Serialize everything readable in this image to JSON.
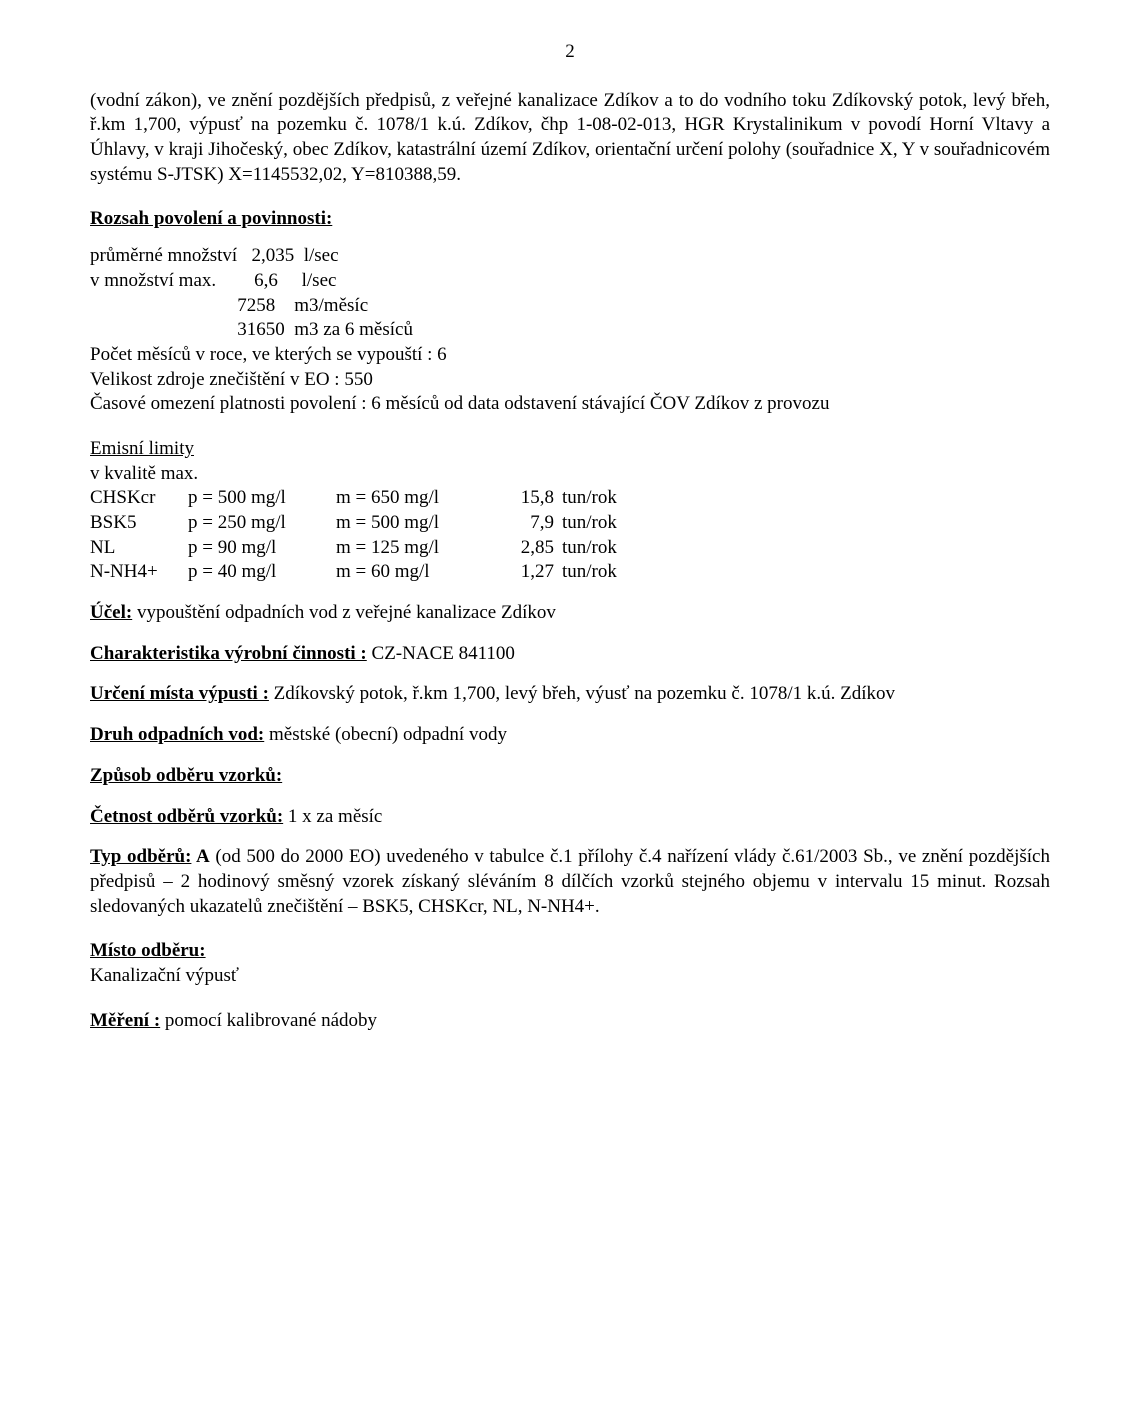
{
  "page_number": "2",
  "intro": "(vodní zákon), ve znění pozdějších předpisů, z veřejné kanalizace Zdíkov a to do vodního toku Zdíkovský potok, levý břeh, ř.km 1,700, výpusť na pozemku č. 1078/1 k.ú. Zdíkov, čhp 1-08-02-013, HGR Krystalinikum v povodí Horní Vltavy a Úhlavy, v kraji Jihočeský, obec Zdíkov, katastrální území Zdíkov, orientační určení polohy (souřadnice X, Y v souřadnicovém systému S-JTSK) X=1145532,02, Y=810388,59.",
  "rozsah_title": "Rozsah povolení a povinnosti:",
  "quantities": {
    "l1": "průměrné množství   2,035  l/sec",
    "l2": "v množství max.        6,6     l/sec",
    "l3": "                               7258    m3/měsíc",
    "l4": "                               31650  m3 za 6 měsíců",
    "l5": "Počet měsíců v roce, ve kterých se vypouští : 6",
    "l6": "Velikost zdroje znečištění v EO : 550",
    "l7": "Časové omezení platnosti povolení : 6 měsíců od data odstavení stávající ČOV Zdíkov z provozu"
  },
  "emisni_title": "Emisní limity",
  "kvalita": "v kvalitě max.",
  "limits": [
    {
      "name": "CHSKcr",
      "p": "p = 500  mg/l",
      "m": "m = 650  mg/l",
      "val": "15,8",
      "unit": "tun/rok"
    },
    {
      "name": "BSK5",
      "p": "p = 250  mg/l",
      "m": "m = 500  mg/l",
      "val": "7,9",
      "unit": "tun/rok"
    },
    {
      "name": "NL",
      "p": "p =  90  mg/l",
      "m": "m = 125  mg/l",
      "val": "2,85",
      "unit": "tun/rok"
    },
    {
      "name": "N-NH4+",
      "p": "p =  40 mg/l",
      "m": "m =  60  mg/l",
      "val": "1,27",
      "unit": "tun/rok"
    }
  ],
  "ucel_label": "Účel:",
  "ucel_text": " vypouštění odpadních vod z veřejné kanalizace Zdíkov",
  "charakter_label": "Charakteristika výrobní činnosti :",
  "charakter_text": "  CZ-NACE 841100",
  "urceni_label": "Určení místa výpusti :",
  "urceni_text": "   Zdíkovský potok, ř.km 1,700, levý břeh, výusť na pozemku č. 1078/1 k.ú. Zdíkov",
  "druh_label": "Druh odpadních vod:",
  "druh_text": "  městské (obecní) odpadní vody",
  "zpusob_label": "Způsob odběru vzorků:",
  "cetnost_label": "Četnost odběrů vzorků:",
  "cetnost_text": "  1 x za měsíc",
  "typ_label": "Typ odběrů:",
  "typ_bold": " A",
  "typ_text": " (od 500 do 2000 EO) uvedeného v tabulce č.1 přílohy č.4 nařízení vlády č.61/2003 Sb., ve znění pozdějších předpisů – 2 hodinový směsný vzorek získaný sléváním 8 dílčích vzorků stejného objemu v intervalu 15 minut. Rozsah sledovaných ukazatelů znečištění – BSK5, CHSKcr, NL, N-NH4+.",
  "misto_label": "Místo odběru:",
  "misto_text": "Kanalizační výpusť",
  "mereni_label": "Měření :",
  "mereni_text": "  pomocí kalibrované nádoby"
}
